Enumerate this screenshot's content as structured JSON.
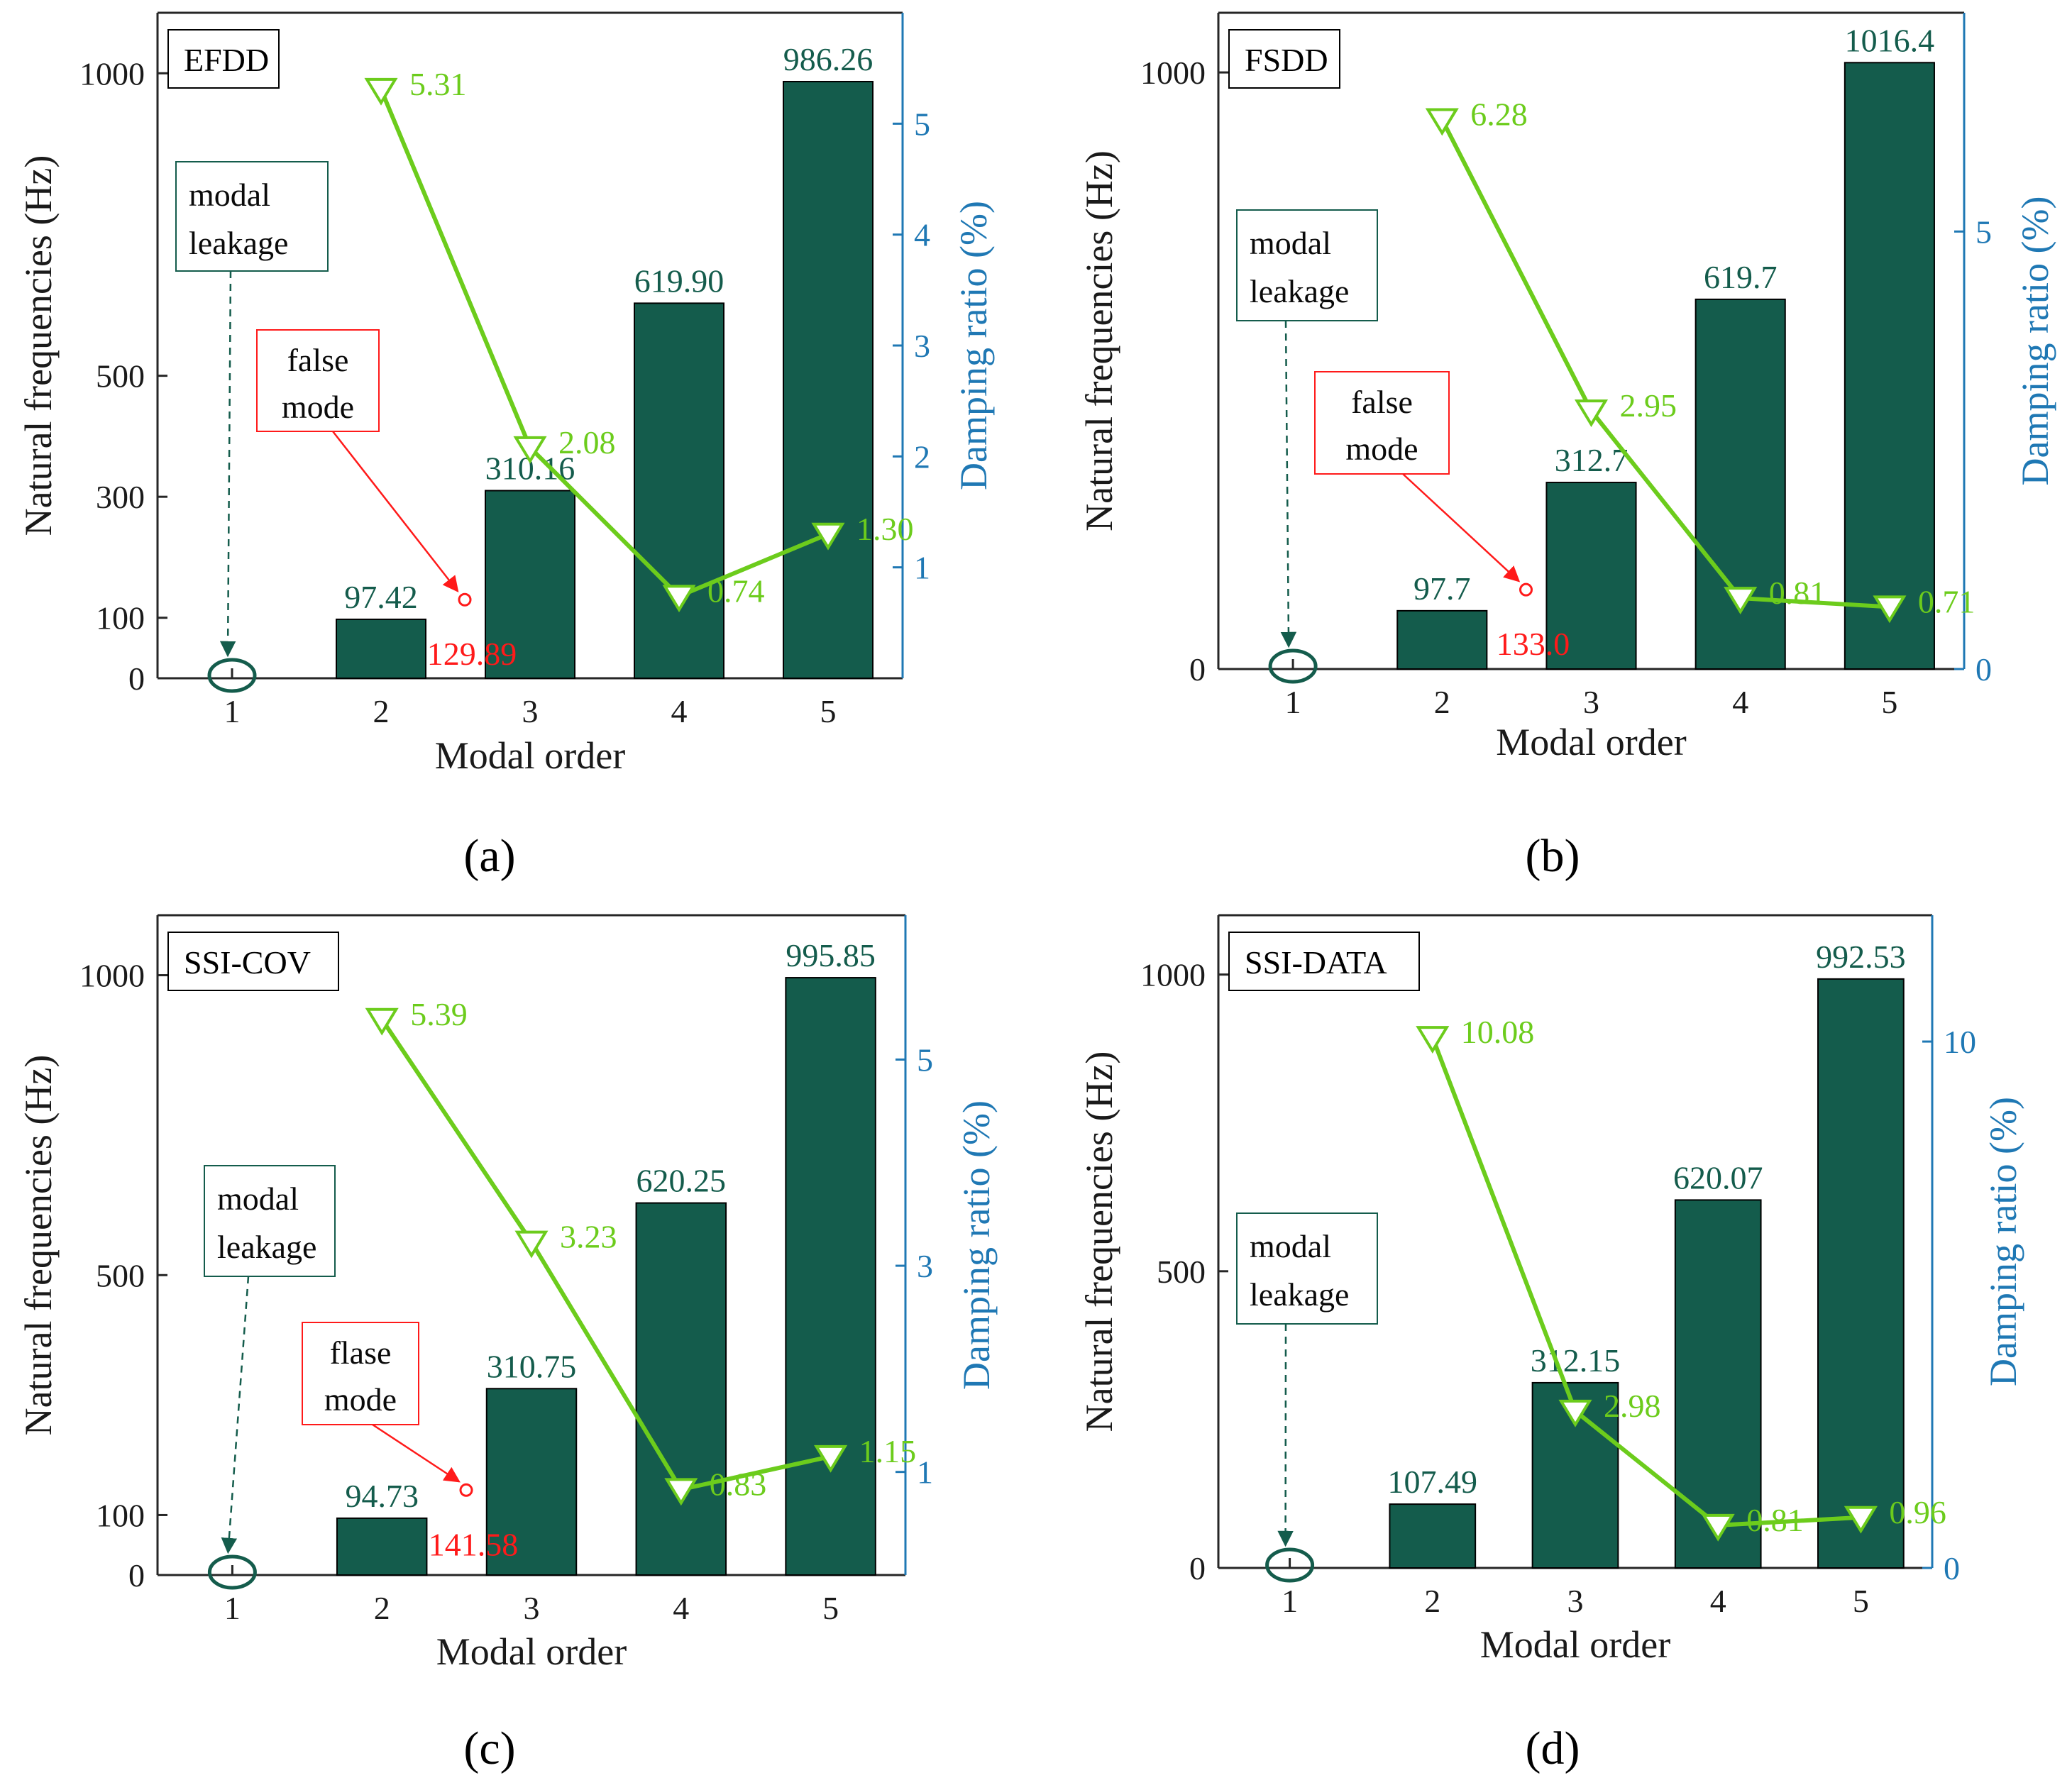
{
  "colors": {
    "bar": "#145c4c",
    "damping": "#6ccc1c",
    "right_axis": "#1f78b4",
    "false_mode": "#ff1a1a",
    "leakage": "#145c4c"
  },
  "chart_data": [
    {
      "type": "bar",
      "panel": "a",
      "caption": "(a)",
      "method": "EFDD",
      "title": "",
      "xlabel": "Modal order",
      "ylabel": "Natural frequencies (Hz)",
      "y2label": "Damping ratio (%)",
      "categories": [
        "1",
        "2",
        "3",
        "4",
        "5"
      ],
      "ylim": [
        0,
        1100
      ],
      "yticks": [
        0,
        100,
        300,
        500,
        1000
      ],
      "y2lim": [
        0,
        6
      ],
      "y2ticks": [
        1,
        2,
        3,
        4,
        5
      ],
      "series": [
        {
          "name": "Natural frequencies",
          "kind": "bar",
          "x": [
            2,
            3,
            4,
            5
          ],
          "values": [
            97.42,
            310.16,
            619.9,
            986.26
          ],
          "labels": [
            "97.42",
            "310.16",
            "619.90",
            "986.26"
          ]
        },
        {
          "name": "Damping ratio",
          "kind": "line",
          "axis": "right",
          "x": [
            2,
            3,
            4,
            5
          ],
          "values": [
            5.31,
            2.08,
            0.74,
            1.3
          ],
          "labels": [
            "5.31",
            "2.08",
            "0.74",
            "1.30"
          ]
        }
      ],
      "false_mode": {
        "label_line1": "false",
        "label_line2": "mode",
        "x": 3,
        "value": 129.89,
        "value_label": "129.89"
      },
      "modal_leakage": {
        "label_line1": "modal",
        "label_line2": "leakage",
        "x": 1
      }
    },
    {
      "type": "bar",
      "panel": "b",
      "caption": "(b)",
      "method": "FSDD",
      "title": "",
      "xlabel": "Modal order",
      "ylabel": "Natural frequencies (Hz)",
      "y2label": "Damping ratio (%)",
      "categories": [
        "1",
        "2",
        "3",
        "4",
        "5"
      ],
      "ylim": [
        0,
        1100
      ],
      "yticks": [
        0,
        1000
      ],
      "y2lim": [
        0,
        7.5
      ],
      "y2ticks": [
        0,
        5
      ],
      "series": [
        {
          "name": "Natural frequencies",
          "kind": "bar",
          "x": [
            2,
            3,
            4,
            5
          ],
          "values": [
            97.7,
            312.7,
            619.7,
            1016.4
          ],
          "labels": [
            "97.7",
            "312.7",
            "619.7",
            "1016.4"
          ]
        },
        {
          "name": "Damping ratio",
          "kind": "line",
          "axis": "right",
          "x": [
            2,
            3,
            4,
            5
          ],
          "values": [
            6.28,
            2.95,
            0.81,
            0.71
          ],
          "labels": [
            "6.28",
            "2.95",
            "0.81",
            "0.71"
          ]
        }
      ],
      "false_mode": {
        "label_line1": "false",
        "label_line2": "mode",
        "x": 3,
        "value": 133.0,
        "value_label": "133.0"
      },
      "modal_leakage": {
        "label_line1": "modal",
        "label_line2": "leakage",
        "x": 1
      }
    },
    {
      "type": "bar",
      "panel": "c",
      "caption": "(c)",
      "method": "SSI-COV",
      "title": "",
      "xlabel": "Modal order",
      "ylabel": "Natural frequencies (Hz)",
      "y2label": "Damping ratio (%)",
      "categories": [
        "1",
        "2",
        "3",
        "4",
        "5"
      ],
      "ylim": [
        0,
        1100
      ],
      "yticks": [
        0,
        100,
        500,
        1000
      ],
      "y2lim": [
        0,
        6.4
      ],
      "y2ticks": [
        1,
        3,
        5
      ],
      "series": [
        {
          "name": "Natural frequencies",
          "kind": "bar",
          "x": [
            2,
            3,
            4,
            5
          ],
          "values": [
            94.73,
            310.75,
            620.25,
            995.85
          ],
          "labels": [
            "94.73",
            "310.75",
            "620.25",
            "995.85"
          ]
        },
        {
          "name": "Damping ratio",
          "kind": "line",
          "axis": "right",
          "x": [
            2,
            3,
            4,
            5
          ],
          "values": [
            5.39,
            3.23,
            0.83,
            1.15
          ],
          "labels": [
            "5.39",
            "3.23",
            "0.83",
            "1.15"
          ]
        }
      ],
      "false_mode": {
        "label_line1": "flase",
        "label_line2": "mode",
        "x": 3,
        "value": 141.58,
        "value_label": "141.58"
      },
      "modal_leakage": {
        "label_line1": "modal",
        "label_line2": "leakage",
        "x": 1
      }
    },
    {
      "type": "bar",
      "panel": "d",
      "caption": "(d)",
      "method": "SSI-DATA",
      "title": "",
      "xlabel": "Modal order",
      "ylabel": "Natural frequencies (Hz)",
      "y2label": "Damping ratio (%)",
      "categories": [
        "1",
        "2",
        "3",
        "4",
        "5"
      ],
      "ylim": [
        0,
        1100
      ],
      "yticks": [
        0,
        500,
        1000
      ],
      "y2lim": [
        0,
        12.4
      ],
      "y2ticks": [
        0,
        10
      ],
      "series": [
        {
          "name": "Natural frequencies",
          "kind": "bar",
          "x": [
            2,
            3,
            4,
            5
          ],
          "values": [
            107.49,
            312.15,
            620.07,
            992.53
          ],
          "labels": [
            "107.49",
            "312.15",
            "620.07",
            "992.53"
          ]
        },
        {
          "name": "Damping ratio",
          "kind": "line",
          "axis": "right",
          "x": [
            2,
            3,
            4,
            5
          ],
          "values": [
            10.08,
            2.98,
            0.81,
            0.96
          ],
          "labels": [
            "10.08",
            "2.98",
            "0.81",
            "0.96"
          ]
        }
      ],
      "modal_leakage": {
        "label_line1": "modal",
        "label_line2": "leakage",
        "x": 1
      }
    }
  ]
}
